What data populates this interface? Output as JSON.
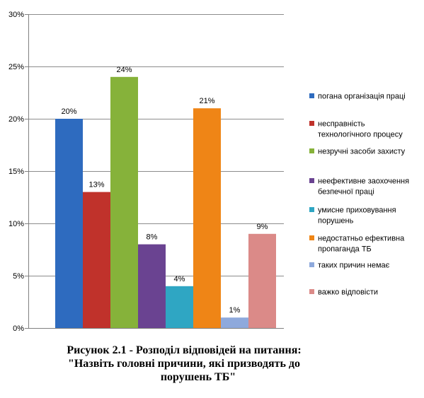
{
  "chart_data": {
    "type": "bar",
    "y_ticks": [
      "0%",
      "5%",
      "10%",
      "15%",
      "20%",
      "25%",
      "30%"
    ],
    "ylim": [
      0,
      30
    ],
    "grid": true,
    "legend_position": "right",
    "series": [
      {
        "name": "погана організація праці",
        "value": 20,
        "label": "20%",
        "color": "#2e6bbf"
      },
      {
        "name": "несправність технологічного процесу",
        "value": 13,
        "label": "13%",
        "color": "#c0322b"
      },
      {
        "name": "незручні засоби захисту",
        "value": 24,
        "label": "24%",
        "color": "#86b23a"
      },
      {
        "name": "неефективне заохочення безпечної праці",
        "value": 8,
        "label": "8%",
        "color": "#6a4391"
      },
      {
        "name": "умисне приховування порушень",
        "value": 4,
        "label": "4%",
        "color": "#2fa6c3"
      },
      {
        "name": "недостатньо ефективна пропаганда ТБ",
        "value": 21,
        "label": "21%",
        "color": "#ef8516"
      },
      {
        "name": "таких причин немає",
        "value": 1,
        "label": "1%",
        "color": "#8ea9dc"
      },
      {
        "name": "важко відповісти",
        "value": 9,
        "label": "9%",
        "color": "#db8a88"
      }
    ]
  },
  "caption": {
    "line1": "Рисунок 2.1 - Розподіл відповідей на питання:",
    "line2": "\"Назвіть головні причини, які призводять до",
    "line3": "порушень ТБ\""
  }
}
